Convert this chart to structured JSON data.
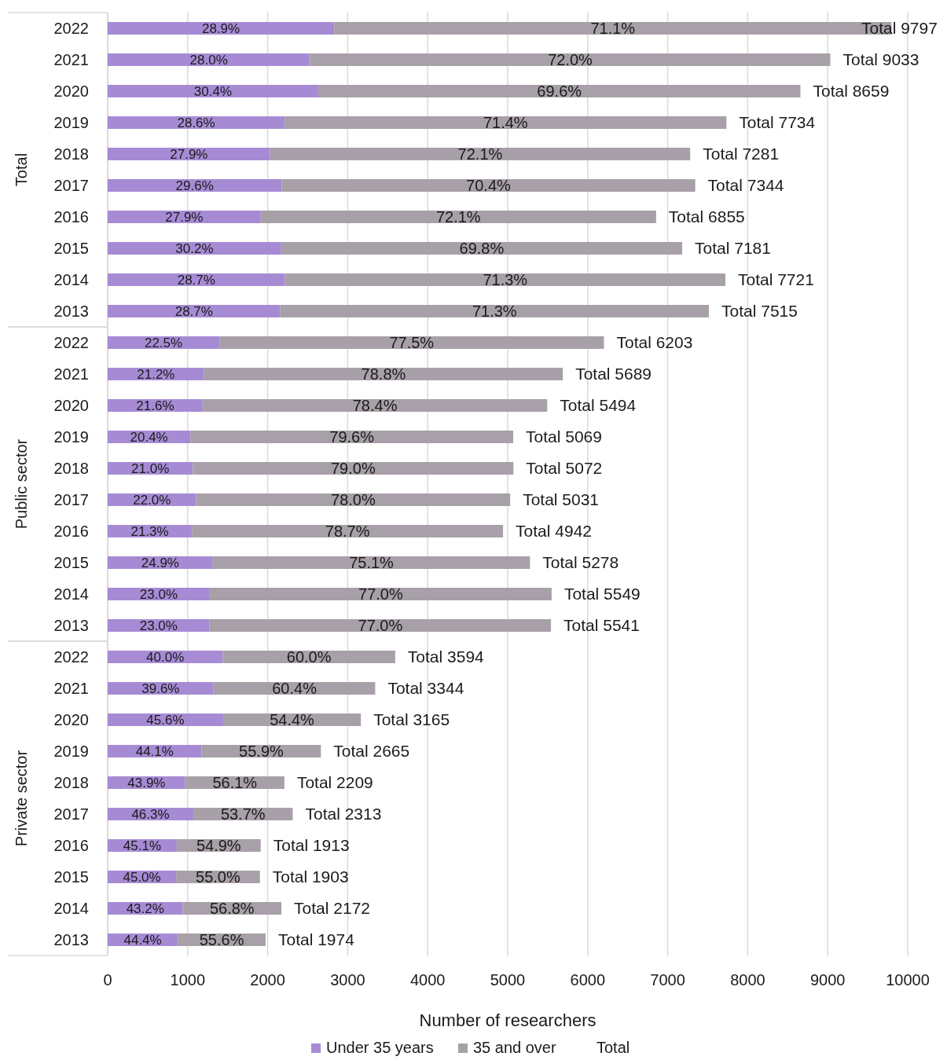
{
  "chart_data": [
    {
      "type": "bar",
      "orientation": "horizontal",
      "stacked": true,
      "ylabel": "Total",
      "categories": [
        "2022",
        "2021",
        "2020",
        "2019",
        "2018",
        "2017",
        "2016",
        "2015",
        "2014",
        "2013"
      ],
      "series": [
        {
          "color": "#a68bd4",
          "values": [
            2831,
            2529,
            2632,
            2212,
            2031,
            2174,
            1913,
            2169,
            2216,
            2157
          ]
        },
        {
          "color": "#a8a0a8",
          "values": [
            6966,
            6504,
            6027,
            5522,
            5250,
            5170,
            4942,
            5012,
            5505,
            5358
          ]
        }
      ],
      "annotations": [
        "28.9%",
        "71.1%",
        "28.0%",
        "72.0%",
        "30.4%",
        "69.6%",
        "28.6%",
        "71.4%",
        "27.9%",
        "72.1%",
        "29.6%",
        "70.4%",
        "27.9%",
        "72.1%",
        "30.2%",
        "69.8%",
        "28.7%",
        "71.3%",
        "28.7%",
        "71.3%"
      ],
      "totals": [
        "Total 9797",
        "Total 9033",
        "Total 8659",
        "Total 7734",
        "Total 7281",
        "Total 7344",
        "Total 6855",
        "Total 7181",
        "Total 7721",
        "Total 7515"
      ],
      "xlim": [
        0,
        10000
      ],
      "xticks": [
        0,
        1000,
        2000,
        3000,
        4000,
        5000,
        6000,
        7000,
        8000,
        9000,
        10000
      ],
      "grid": "x",
      "tick_labels": "y"
    },
    {
      "type": "bar",
      "orientation": "horizontal",
      "stacked": true,
      "ylabel": "Public sector",
      "categories": [
        "2022",
        "2021",
        "2020",
        "2019",
        "2018",
        "2017",
        "2016",
        "2015",
        "2014",
        "2013"
      ],
      "series": [
        {
          "color": "#a68bd4",
          "values": [
            1396,
            1206,
            1187,
            1034,
            1065,
            1107,
            1053,
            1314,
            1276,
            1274
          ]
        },
        {
          "color": "#a8a0a8",
          "values": [
            4807,
            4483,
            4307,
            4035,
            4007,
            3924,
            3889,
            3964,
            4273,
            4267
          ]
        }
      ],
      "annotations": [
        "22.5%",
        "77.5%",
        "21.2%",
        "78.8%",
        "21.6%",
        "78.4%",
        "20.4%",
        "79.6%",
        "21.0%",
        "79.0%",
        "22.0%",
        "78.0%",
        "21.3%",
        "78.7%",
        "24.9%",
        "75.1%",
        "23.0%",
        "77.0%",
        "23.0%",
        "77.0%"
      ],
      "totals": [
        "Total 6203",
        "Total 5689",
        "Total 5494",
        "Total 5069",
        "Total 5072",
        "Total 5031",
        "Total 4942",
        "Total 5278",
        "Total 5549",
        "Total 5541"
      ],
      "xlim": [
        0,
        10000
      ],
      "xticks": [
        0,
        1000,
        2000,
        3000,
        4000,
        5000,
        6000,
        7000,
        8000,
        9000,
        10000
      ],
      "grid": "x",
      "tick_labels": "y"
    },
    {
      "type": "bar",
      "orientation": "horizontal",
      "stacked": true,
      "ylabel": "Private sector",
      "xlabel": "Number of researchers",
      "categories": [
        "2022",
        "2021",
        "2020",
        "2019",
        "2018",
        "2017",
        "2016",
        "2015",
        "2014",
        "2013"
      ],
      "series": [
        {
          "name": "Under 35 years",
          "color": "#a68bd4",
          "values": [
            1438,
            1324,
            1443,
            1175,
            970,
            1071,
            863,
            856,
            938,
            876
          ]
        },
        {
          "name": "35 and over",
          "color": "#a8a0a8",
          "values": [
            2156,
            2020,
            1722,
            1490,
            1239,
            1242,
            1050,
            1047,
            1234,
            1098
          ]
        },
        {
          "name": "Total",
          "values": [
            null,
            null,
            null,
            null,
            null,
            null,
            null,
            null,
            null,
            null
          ]
        }
      ],
      "annotations": [
        "40.0%",
        "60.0%",
        "39.6%",
        "60.4%",
        "45.6%",
        "54.4%",
        "44.1%",
        "55.9%",
        "43.9%",
        "56.1%",
        "46.3%",
        "53.7%",
        "45.1%",
        "54.9%",
        "45.0%",
        "55.0%",
        "43.2%",
        "56.8%",
        "44.4%",
        "55.6%"
      ],
      "totals": [
        "Total 3594",
        "Total 3344",
        "Total 3165",
        "Total 2665",
        "Total 2209",
        "Total 2313",
        "Total 1913",
        "Total 1903",
        "Total 2172",
        "Total 1974"
      ],
      "xlim": [
        0,
        10000
      ],
      "xticks": [
        0,
        1000,
        2000,
        3000,
        4000,
        5000,
        6000,
        7000,
        8000,
        9000,
        10000
      ],
      "grid": "x",
      "legend": "bottom"
    }
  ]
}
